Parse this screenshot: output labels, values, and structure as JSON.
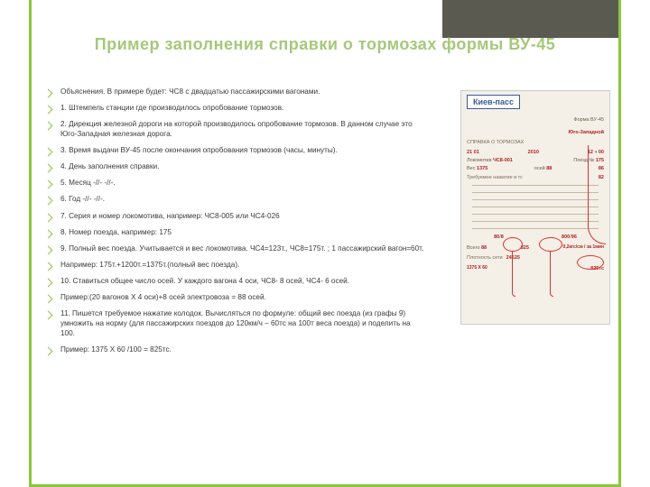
{
  "colors": {
    "accent_green": "#8cc63e",
    "title_green": "#a6c87a",
    "header_gray": "#5a5a50",
    "text_gray": "#3a3a3a",
    "form_bg": "#f4f0e8",
    "stamp_blue": "#3b5998",
    "red": "#e03030"
  },
  "title": "Пример заполнения справки о тормозах формы ВУ-45",
  "bullets": [
    "Объяснения. В примере будет: ЧС8 с двадцатью пассажирскими вагонами.",
    "1. Штемпель станции где производилось опробование тормозов.",
    "2. Дирекция железной дороги на которой производилось опробование тормозов. В данном случае это Юго-Западная железная дорога.",
    "3. Время выдачи ВУ-45 после окончания опробования тормозов (часы, минуты).",
    "4. День заполнения справки.",
    "5. Месяц  -//-      -//-.",
    "6. Год   -//-     -//-.",
    "7. Серия и номер локомотива, например: ЧС8-005 или ЧС4-026",
    "8. Номер поезда, например: 175",
    "9. Полный вес поезда. Учитывается и вес локомотива. ЧС4=123т., ЧС8=175т. ; 1 пассажирский вагон=60т.",
    "Например: 175т.+1200т.=1375т.(полный вес поезда).",
    "10. Ставиться общее число осей. У каждого вагона 4 оси, ЧС8- 8 осей, ЧС4- 6 осей.",
    "Пример:(20 вагонов Х 4 оси)+8 осей электровоза = 88 осей.",
    "11. Пишется требуемое нажатие колодок. Вычисляться по формуле: общий вес поезда (из графы 9) умножить на норму (для пассажирских поездов до 120км/ч – 60тс на 100т веса поезда) и поделить на 100.",
    "Пример: 1375 Х 60 /100 = 825тс."
  ],
  "form": {
    "stamp": "Киев-пасс",
    "header_right": "Форма ВУ-45",
    "road": "Юго-Западной",
    "time_h": "12",
    "time_m": "00",
    "day": "21",
    "month": "01",
    "year": "2010",
    "loco": "ЧС8-001",
    "train": "175",
    "weight": "1375",
    "axles": "88",
    "press1": "86",
    "press2": "82",
    "v80_1": "80",
    "v80_2": "8",
    "v800": "800",
    "v96": "96",
    "note": "0,2кгс/см / за 1мин",
    "formula_left": "1375 X 60",
    "formula_right": "825тс",
    "code": "24525",
    "req": "825"
  }
}
